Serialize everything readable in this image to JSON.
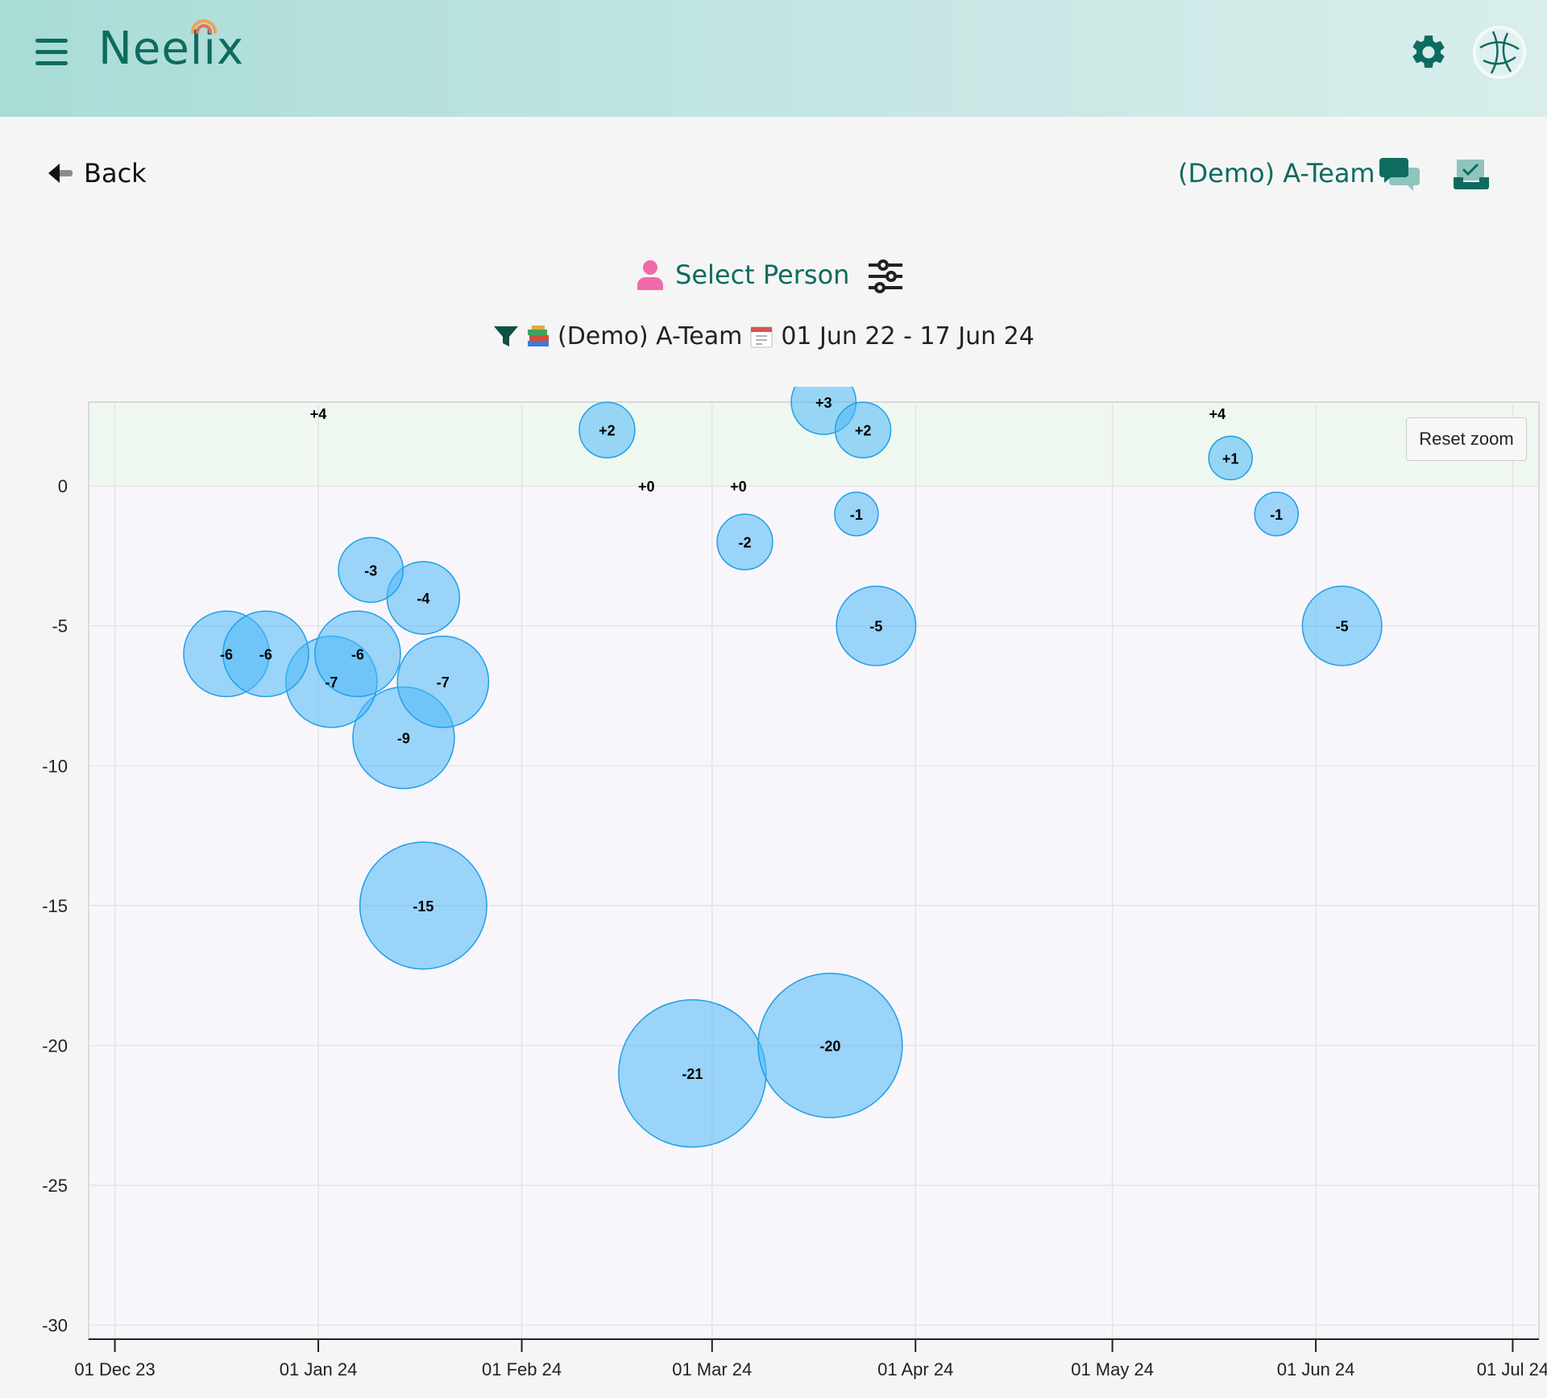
{
  "app": {
    "name": "Neelix"
  },
  "nav": {
    "back_label": "Back",
    "team_name": "(Demo) A-Team"
  },
  "selector": {
    "select_person_label": "Select Person"
  },
  "filter": {
    "team": "(Demo) A-Team",
    "date_range": "01 Jun 22 - 17 Jun 24"
  },
  "colors": {
    "brand": "#0e6b5f",
    "bubble": "#4db8f8",
    "positive_band": "#eff8f0",
    "negative_band": "#f9f6fb",
    "person_icon": "#f06aa8"
  },
  "chart": {
    "reset_zoom_label": "Reset zoom"
  },
  "chart_data": {
    "type": "scatter",
    "bubble": true,
    "x_ticks": [
      "01 Dec 23",
      "01 Jan 24",
      "01 Feb 24",
      "01 Mar 24",
      "01 Apr 24",
      "01 May 24",
      "01 Jun 24",
      "01 Jul 24"
    ],
    "y_ticks": [
      "0",
      "-5",
      "-10",
      "-15",
      "-20",
      "-25",
      "-30"
    ],
    "ylim": [
      -30.5,
      3
    ],
    "xlim": [
      "2023-11-27",
      "2024-07-05"
    ],
    "points": [
      {
        "x": "2023-12-18",
        "y": -6,
        "label": "-6",
        "size": 6
      },
      {
        "x": "2023-12-24",
        "y": -6,
        "label": "-6",
        "size": 6
      },
      {
        "x": "2024-01-03",
        "y": -7,
        "label": "-7",
        "size": 7
      },
      {
        "x": "2024-01-07",
        "y": -6,
        "label": "-6",
        "size": 6
      },
      {
        "x": "2024-01-09",
        "y": -3,
        "label": "-3",
        "size": 3
      },
      {
        "x": "2024-01-14",
        "y": -9,
        "label": "-9",
        "size": 9
      },
      {
        "x": "2024-01-17",
        "y": -4,
        "label": "-4",
        "size": 4
      },
      {
        "x": "2024-01-17",
        "y": -15,
        "label": "-15",
        "size": 15
      },
      {
        "x": "2024-01-20",
        "y": -7,
        "label": "-7",
        "size": 7
      },
      {
        "x": "2024-02-14",
        "y": 2,
        "label": "+2",
        "size": 2
      },
      {
        "x": "2024-02-20",
        "y": 0,
        "label": "+0",
        "size": 0
      },
      {
        "x": "2024-02-27",
        "y": -21,
        "label": "-21",
        "size": 21
      },
      {
        "x": "2024-03-05",
        "y": 0,
        "label": "+0",
        "size": 0
      },
      {
        "x": "2024-03-06",
        "y": -2,
        "label": "-2",
        "size": 2
      },
      {
        "x": "2024-03-19",
        "y": -20,
        "label": "-20",
        "size": 20
      },
      {
        "x": "2024-03-18",
        "y": 3,
        "label": "+3",
        "size": 3
      },
      {
        "x": "2024-03-24",
        "y": 2,
        "label": "+2",
        "size": 2
      },
      {
        "x": "2024-03-23",
        "y": -1,
        "label": "-1",
        "size": 1
      },
      {
        "x": "2024-03-26",
        "y": -5,
        "label": "-5",
        "size": 5
      },
      {
        "x": "2024-01-01",
        "y": 4,
        "label": "+4",
        "size": 0
      },
      {
        "x": "2024-05-17",
        "y": 4,
        "label": "+4",
        "size": 0
      },
      {
        "x": "2024-05-19",
        "y": 1,
        "label": "+1",
        "size": 1
      },
      {
        "x": "2024-05-26",
        "y": -1,
        "label": "-1",
        "size": 1
      },
      {
        "x": "2024-06-05",
        "y": -5,
        "label": "-5",
        "size": 5
      }
    ],
    "grid": true
  }
}
